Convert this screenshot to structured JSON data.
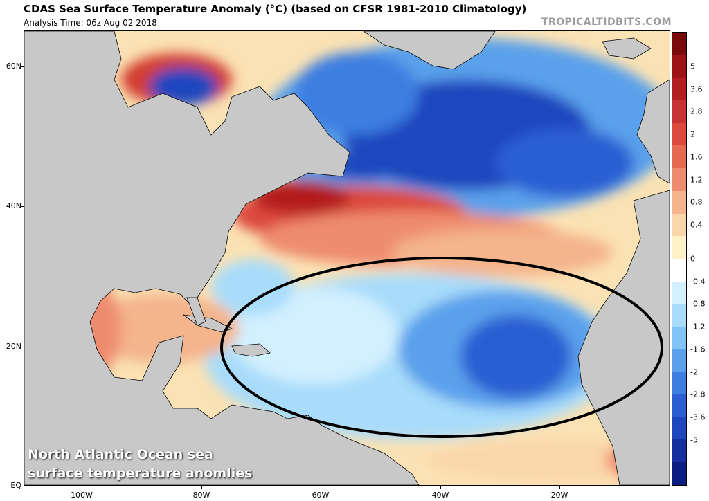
{
  "header": {
    "title": "CDAS Sea Surface Temperature Anomaly (°C) (based on CFSR 1981-2010 Climatology)",
    "analysis_time": "Analysis Time: 06z Aug 02 2018",
    "credit": "TROPICALTIDBITS.COM"
  },
  "axes": {
    "lat_labels": [
      "60N",
      "40N",
      "20N",
      "EQ"
    ],
    "lon_labels": [
      "100W",
      "80W",
      "60W",
      "40W",
      "20W"
    ]
  },
  "colorbar": {
    "labels": [
      "5",
      "3.6",
      "2.8",
      "2",
      "1.6",
      "1.2",
      "0.8",
      "0.4",
      "0",
      "-0.4",
      "-0.8",
      "-1.2",
      "-1.6",
      "-2",
      "-2.8",
      "-3.6",
      "-5"
    ],
    "colors": [
      "#7a0a0a",
      "#9e1414",
      "#b41e1e",
      "#c83232",
      "#dc4a3c",
      "#e66a50",
      "#ee8c6e",
      "#f4b48c",
      "#fad7aa",
      "#fff2c8",
      "#ffffff",
      "#d2f0ff",
      "#a8dcfa",
      "#82c3f5",
      "#5aa0eb",
      "#3c7ee1",
      "#2a5ed2",
      "#1e46be",
      "#1430a0",
      "#0a1e82"
    ]
  },
  "caption": {
    "line1": "North Atlantic Ocean sea",
    "line2": "surface temperature anomlies"
  },
  "colors": {
    "land": "#c8c8c8",
    "warm": "#d23c2e",
    "cool": "#2a5ed2",
    "neutral": "#fff2c8",
    "ellipse": "#000000"
  }
}
